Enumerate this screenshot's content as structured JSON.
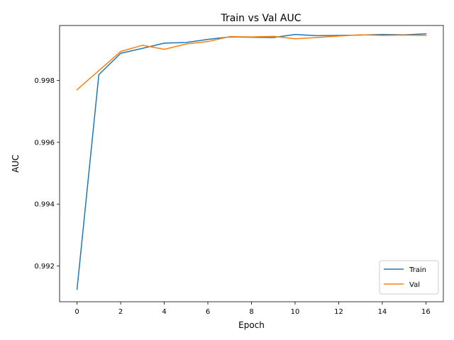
{
  "chart_data": {
    "type": "line",
    "title": "Train vs Val AUC",
    "xlabel": "Epoch",
    "ylabel": "AUC",
    "xlim": [
      -0.8,
      16.8
    ],
    "ylim": [
      0.99084,
      0.99978
    ],
    "xticks": [
      0,
      2,
      4,
      6,
      8,
      10,
      12,
      14,
      16
    ],
    "xtick_labels": [
      "0",
      "2",
      "4",
      "6",
      "8",
      "10",
      "12",
      "14",
      "16"
    ],
    "yticks": [
      0.992,
      0.994,
      0.996,
      0.998
    ],
    "ytick_labels": [
      "0.992",
      "0.994",
      "0.996",
      "0.998"
    ],
    "grid": false,
    "legend_position": "lower-right",
    "x": [
      0,
      1,
      2,
      3,
      4,
      5,
      6,
      7,
      8,
      9,
      10,
      11,
      12,
      13,
      14,
      15,
      16
    ],
    "series": [
      {
        "name": "Train",
        "color": "#1f77b4",
        "values": [
          0.99124,
          0.99819,
          0.99888,
          0.99904,
          0.99921,
          0.99923,
          0.99933,
          0.99941,
          0.9994,
          0.99939,
          0.99949,
          0.99945,
          0.99946,
          0.99947,
          0.99949,
          0.99948,
          0.99951
        ]
      },
      {
        "name": "Val",
        "color": "#ff7f0e",
        "values": [
          0.9977,
          0.99832,
          0.99894,
          0.99914,
          0.99901,
          0.99918,
          0.99926,
          0.99942,
          0.99941,
          0.99943,
          0.99935,
          0.99939,
          0.99944,
          0.99948,
          0.99946,
          0.99947,
          0.99946
        ]
      }
    ]
  }
}
